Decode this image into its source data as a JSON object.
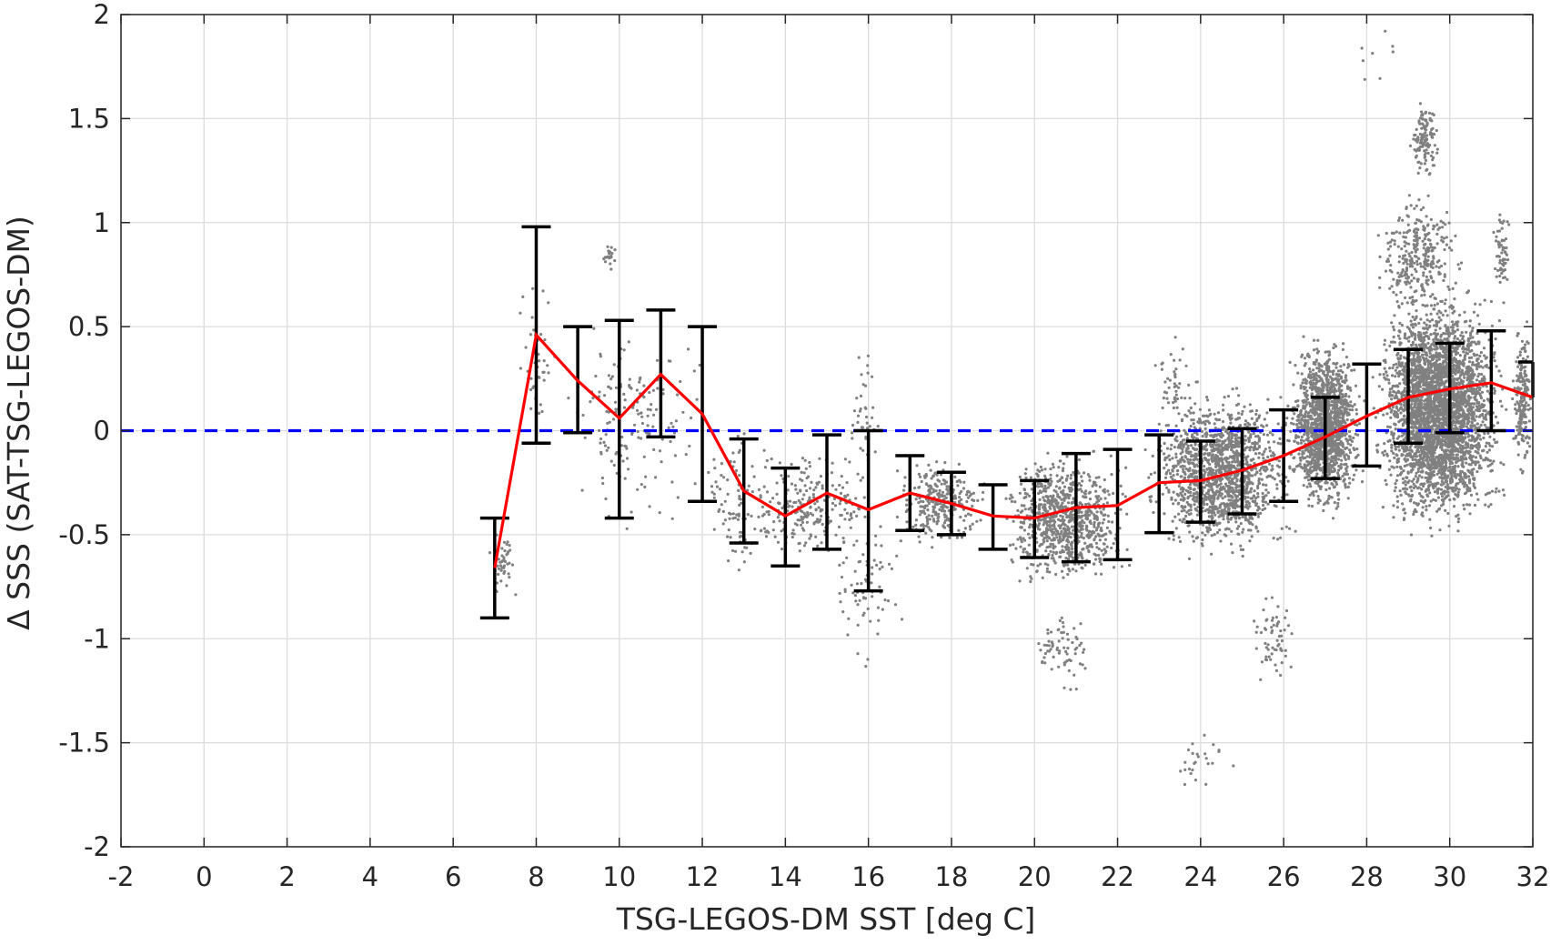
{
  "chart_data": {
    "type": "scatter",
    "xlabel": "TSG-LEGOS-DM SST [deg C]",
    "ylabel": "Δ SSS (SAT-TSG-LEGOS-DM)",
    "xlim": [
      -2,
      32
    ],
    "ylim": [
      -2,
      2
    ],
    "xticks": [
      "-2",
      "0",
      "2",
      "4",
      "6",
      "8",
      "10",
      "12",
      "14",
      "16",
      "18",
      "20",
      "22",
      "24",
      "26",
      "28",
      "30",
      "32"
    ],
    "yticks": [
      "-2",
      "-1.5",
      "-1",
      "-0.5",
      "0",
      "0.5",
      "1",
      "1.5",
      "2"
    ],
    "grid": true,
    "reference_line": {
      "y": 0,
      "style": "dashed",
      "color": "#0000ff"
    },
    "colors": {
      "scatter": "#808080",
      "mean_line": "#ff0000",
      "error_bars": "#000000",
      "reference": "#0000ff"
    },
    "binned_mean": {
      "x": [
        7,
        8,
        9,
        10,
        11,
        12,
        13,
        14,
        15,
        16,
        17,
        18,
        19,
        20,
        21,
        22,
        23,
        24,
        25,
        26,
        27,
        28,
        29,
        30,
        31,
        32
      ],
      "mean": [
        -0.66,
        0.46,
        0.24,
        0.06,
        0.27,
        0.08,
        -0.29,
        -0.41,
        -0.3,
        -0.38,
        -0.3,
        -0.35,
        -0.41,
        -0.42,
        -0.37,
        -0.36,
        -0.25,
        -0.24,
        -0.19,
        -0.12,
        -0.03,
        0.07,
        0.16,
        0.2,
        0.23,
        0.16
      ],
      "lower": [
        -0.9,
        -0.06,
        -0.01,
        -0.42,
        -0.03,
        -0.34,
        -0.54,
        -0.65,
        -0.57,
        -0.77,
        -0.48,
        -0.5,
        -0.57,
        -0.61,
        -0.63,
        -0.62,
        -0.49,
        -0.44,
        -0.4,
        -0.34,
        -0.23,
        -0.17,
        -0.06,
        -0.01,
        0.0,
        null
      ],
      "upper": [
        -0.42,
        0.98,
        0.5,
        0.53,
        0.58,
        0.5,
        -0.04,
        -0.18,
        -0.02,
        0.0,
        -0.12,
        -0.2,
        -0.26,
        -0.24,
        -0.11,
        -0.09,
        -0.02,
        -0.05,
        0.01,
        0.1,
        0.16,
        0.32,
        0.39,
        0.42,
        0.48,
        0.33
      ]
    },
    "scatter_clusters": [
      {
        "x": [
          6.7,
          7.7
        ],
        "y": [
          -0.85,
          -0.45
        ],
        "n": 45
      },
      {
        "x": [
          7.5,
          8.5
        ],
        "y": [
          -0.05,
          0.8
        ],
        "n": 40
      },
      {
        "x": [
          8.3,
          12.3
        ],
        "y": [
          -0.5,
          0.6
        ],
        "n": 160
      },
      {
        "x": [
          9.6,
          10.0
        ],
        "y": [
          0.75,
          0.93
        ],
        "n": 20
      },
      {
        "x": [
          12.0,
          13.5
        ],
        "y": [
          -0.8,
          0.1
        ],
        "n": 80
      },
      {
        "x": [
          12.5,
          16.5
        ],
        "y": [
          -0.7,
          -0.05
        ],
        "n": 250
      },
      {
        "x": [
          15.0,
          17.0
        ],
        "y": [
          -1.2,
          -0.3
        ],
        "n": 70
      },
      {
        "x": [
          15.5,
          16.3
        ],
        "y": [
          -0.3,
          0.5
        ],
        "n": 40
      },
      {
        "x": [
          16.5,
          19.0
        ],
        "y": [
          -0.6,
          -0.1
        ],
        "n": 300
      },
      {
        "x": [
          19.0,
          22.5
        ],
        "y": [
          -0.8,
          -0.05
        ],
        "n": 900
      },
      {
        "x": [
          19.8,
          21.5
        ],
        "y": [
          -1.3,
          -0.8
        ],
        "n": 70
      },
      {
        "x": [
          22.5,
          26.5
        ],
        "y": [
          -0.65,
          0.25
        ],
        "n": 1500
      },
      {
        "x": [
          22.8,
          23.8
        ],
        "y": [
          0.0,
          0.5
        ],
        "n": 40
      },
      {
        "x": [
          23.0,
          25.0
        ],
        "y": [
          -1.75,
          -1.4
        ],
        "n": 25
      },
      {
        "x": [
          25.0,
          26.5
        ],
        "y": [
          -1.3,
          -0.7
        ],
        "n": 60
      },
      {
        "x": [
          26.0,
          28.0
        ],
        "y": [
          -0.45,
          0.5
        ],
        "n": 1500
      },
      {
        "x": [
          28.0,
          31.5
        ],
        "y": [
          -0.55,
          0.75
        ],
        "n": 3500
      },
      {
        "x": [
          28.0,
          30.5
        ],
        "y": [
          0.5,
          1.2
        ],
        "n": 300
      },
      {
        "x": [
          29.0,
          29.8
        ],
        "y": [
          1.2,
          1.6
        ],
        "n": 130
      },
      {
        "x": [
          31.0,
          31.5
        ],
        "y": [
          0.6,
          1.1
        ],
        "n": 60
      },
      {
        "x": [
          31.5,
          32.0
        ],
        "y": [
          -0.3,
          0.6
        ],
        "n": 200
      },
      {
        "x": [
          27.5,
          29.0
        ],
        "y": [
          1.65,
          1.95
        ],
        "n": 8
      }
    ]
  }
}
